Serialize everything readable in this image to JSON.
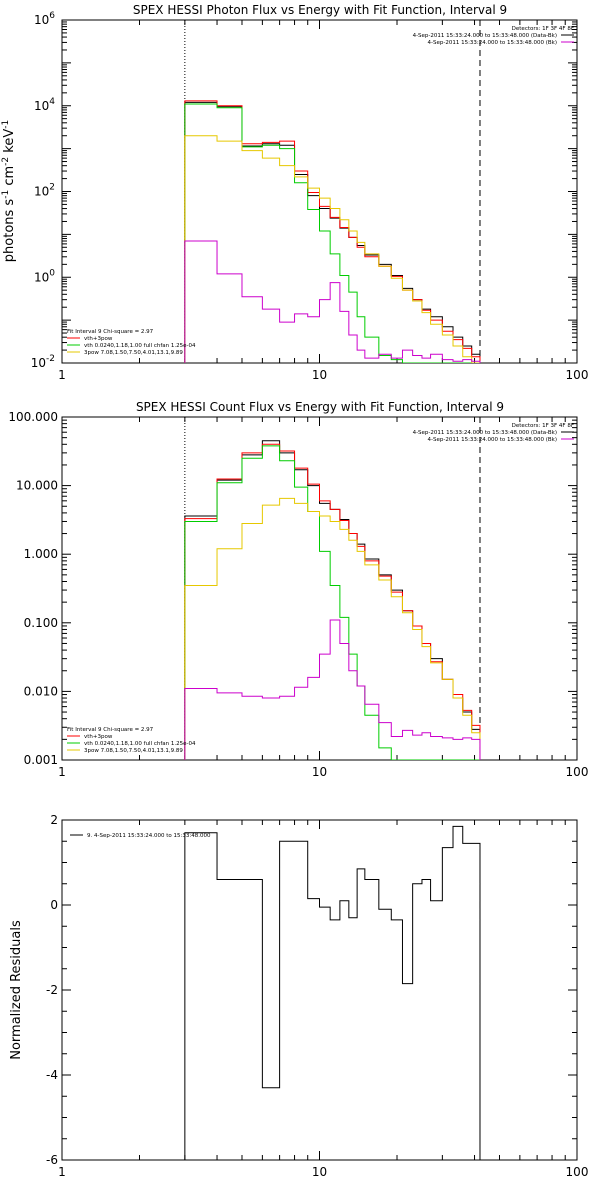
{
  "chart_data": [
    {
      "type": "line",
      "title": "SPEX HESSI Photon Flux vs Energy with Fit Function, Interval 9",
      "ylabel_parts": [
        "photons s",
        "-1",
        " cm",
        "-2",
        " keV",
        "-1"
      ],
      "xlabel": "",
      "xscale": "log",
      "yscale": "log",
      "xlim": [
        1,
        100
      ],
      "ylim": [
        0.01,
        1000000
      ],
      "xticks": [
        1,
        10,
        100
      ],
      "xticklabels": [
        "1",
        "10",
        "100"
      ],
      "yticks": [
        0.01,
        1,
        100,
        10000,
        1000000
      ],
      "yticklabels": [
        {
          "base": "10",
          "exp": "-2"
        },
        {
          "base": "10",
          "exp": "0"
        },
        {
          "base": "10",
          "exp": "2"
        },
        {
          "base": "10",
          "exp": "4"
        },
        {
          "base": "10",
          "exp": "6"
        }
      ],
      "vlines": [
        {
          "x": 3,
          "style": "dotted"
        },
        {
          "x": 42,
          "style": "dashed"
        }
      ],
      "legend_top": {
        "placement": "top-right",
        "header": "Detectors: 1F 3F 4F 8F",
        "entries": [
          {
            "label": "4-Sep-2011 15:33:24.000 to 15:33:48.000 (Data-Bk)",
            "color": "#000000"
          },
          {
            "label": "4-Sep-2011 15:33:24.000 to 15:33:48.000 (Bk)",
            "color": "#cc00cc"
          }
        ]
      },
      "legend_bottom": {
        "placement": "bottom-left",
        "header": "Fit Interval 9   Chi-square = 2.97",
        "entries": [
          {
            "label": "vth+3pow",
            "color": "#ff0000"
          },
          {
            "label": "vth 0.0240,1.18,1.00  full chfan 1.25e-04",
            "color": "#00cc00"
          },
          {
            "label": "3pow 7.08,1.50,7.50,4.01,13.1,9.89",
            "color": "#e6c800"
          }
        ]
      },
      "edges": [
        3,
        4,
        5,
        6,
        7,
        8,
        9,
        10,
        11,
        12,
        13,
        14,
        15,
        17,
        19,
        21,
        23,
        25,
        27,
        30,
        33,
        36,
        39,
        42
      ],
      "series": [
        {
          "name": "Data-Bk",
          "color": "#000000",
          "values": [
            12000,
            9500,
            1150,
            1300,
            1200,
            250,
            80,
            40,
            24,
            14,
            8.5,
            5.5,
            3.3,
            2.0,
            1.1,
            0.55,
            0.3,
            0.18,
            0.12,
            0.07,
            0.04,
            0.025,
            0.016
          ]
        },
        {
          "name": "vth+3pow",
          "color": "#ff0000",
          "values": [
            13000,
            10000,
            1300,
            1400,
            1500,
            300,
            95,
            45,
            25,
            14.5,
            8.5,
            5.0,
            3.0,
            1.8,
            1.05,
            0.5,
            0.3,
            0.17,
            0.1,
            0.055,
            0.035,
            0.022,
            0.014
          ]
        },
        {
          "name": "vth",
          "color": "#00cc00",
          "values": [
            11000,
            9000,
            1100,
            1200,
            1000,
            160,
            38,
            12,
            3.5,
            1.1,
            0.45,
            0.12,
            0.04,
            0.015,
            0.012,
            0.01,
            0.01,
            0.01,
            0.01,
            0.01,
            0.01,
            0.01,
            0.01
          ]
        },
        {
          "name": "3pow",
          "color": "#e6c800",
          "values": [
            2000,
            1500,
            900,
            600,
            400,
            220,
            120,
            70,
            40,
            22,
            12,
            6.5,
            3.5,
            1.8,
            0.95,
            0.5,
            0.28,
            0.15,
            0.08,
            0.045,
            0.025,
            0.014,
            0.01
          ]
        },
        {
          "name": "Bk",
          "color": "#cc00cc",
          "values": [
            7,
            1.2,
            0.35,
            0.18,
            0.09,
            0.14,
            0.12,
            0.3,
            0.75,
            0.16,
            0.045,
            0.02,
            0.013,
            0.016,
            0.013,
            0.02,
            0.015,
            0.013,
            0.016,
            0.012,
            0.011,
            0.012,
            0.011
          ]
        }
      ]
    },
    {
      "type": "line",
      "title": "SPEX HESSI Count Flux vs Energy with Fit Function, Interval 9",
      "ylabel": "",
      "xlabel": "",
      "xscale": "log",
      "yscale": "log",
      "xlim": [
        1,
        100
      ],
      "ylim": [
        0.001,
        100
      ],
      "xticks": [
        1,
        10,
        100
      ],
      "xticklabels": [
        "1",
        "10",
        "100"
      ],
      "yticks": [
        0.001,
        0.01,
        0.1,
        1,
        10,
        100
      ],
      "yticklabels": [
        "0.001",
        "0.010",
        "0.100",
        "1.000",
        "10.000",
        "100.000"
      ],
      "vlines": [
        {
          "x": 3,
          "style": "dotted"
        },
        {
          "x": 42,
          "style": "dashed"
        }
      ],
      "legend_top": {
        "placement": "top-right",
        "header": "Detectors: 1F 3F 4F 8F",
        "entries": [
          {
            "label": "4-Sep-2011 15:33:24.000 to 15:33:48.000 (Data-Bk)",
            "color": "#000000"
          },
          {
            "label": "4-Sep-2011 15:33:24.000 to 15:33:48.000 (Bk)",
            "color": "#cc00cc"
          }
        ]
      },
      "legend_bottom": {
        "placement": "bottom-left",
        "header": "Fit Interval 9   Chi-square = 2.97",
        "entries": [
          {
            "label": "vth+3pow",
            "color": "#ff0000"
          },
          {
            "label": "vth 0.0240,1.18,1.00  full chfan 1.25e-04",
            "color": "#00cc00"
          },
          {
            "label": "3pow 7.08,1.50,7.50,4.01,13.1,9.89",
            "color": "#e6c800"
          }
        ]
      },
      "edges": [
        3,
        4,
        5,
        6,
        7,
        8,
        9,
        10,
        11,
        12,
        13,
        14,
        15,
        17,
        19,
        21,
        23,
        25,
        27,
        30,
        33,
        36,
        39,
        42
      ],
      "series": [
        {
          "name": "Data-Bk",
          "color": "#000000",
          "values": [
            3.6,
            12,
            28,
            45,
            30,
            17,
            10,
            5.5,
            4.5,
            3.2,
            2.0,
            1.4,
            0.85,
            0.5,
            0.3,
            0.15,
            0.09,
            0.05,
            0.03,
            0.015,
            0.008,
            0.005,
            0.0028
          ]
        },
        {
          "name": "vth+3pow",
          "color": "#ff0000",
          "values": [
            3.3,
            12.5,
            30,
            40,
            32,
            18,
            10.5,
            6.0,
            4.5,
            3.1,
            2.0,
            1.3,
            0.8,
            0.48,
            0.28,
            0.15,
            0.09,
            0.05,
            0.027,
            0.015,
            0.009,
            0.0053,
            0.0032
          ]
        },
        {
          "name": "vth",
          "color": "#00cc00",
          "values": [
            3.0,
            11,
            25,
            38,
            23,
            9.5,
            4.2,
            1.1,
            0.35,
            0.12,
            0.035,
            0.012,
            0.0045,
            0.0015,
            0.001,
            0.001,
            0.001,
            0.001,
            0.001,
            0.001,
            0.001,
            0.001,
            0.001
          ]
        },
        {
          "name": "3pow",
          "color": "#e6c800",
          "values": [
            0.35,
            1.2,
            2.8,
            5.2,
            6.5,
            5.5,
            4.2,
            3.6,
            3.0,
            2.3,
            1.6,
            1.1,
            0.7,
            0.42,
            0.24,
            0.14,
            0.08,
            0.045,
            0.026,
            0.015,
            0.008,
            0.0045,
            0.0025
          ]
        },
        {
          "name": "Bk",
          "color": "#cc00cc",
          "values": [
            0.011,
            0.0095,
            0.0085,
            0.008,
            0.0085,
            0.0115,
            0.016,
            0.035,
            0.11,
            0.05,
            0.02,
            0.012,
            0.0065,
            0.0035,
            0.0022,
            0.0027,
            0.0023,
            0.0025,
            0.0022,
            0.0021,
            0.002,
            0.0021,
            0.002
          ]
        }
      ]
    },
    {
      "type": "line",
      "title": "",
      "ylabel": "Normalized Residuals",
      "xlabel": "",
      "xscale": "log",
      "yscale": "linear",
      "xlim": [
        1,
        100
      ],
      "ylim": [
        -6,
        2
      ],
      "xticks": [
        1,
        10,
        100
      ],
      "xticklabels": [
        "1",
        "10",
        "100"
      ],
      "yticks": [
        -6,
        -4,
        -2,
        0,
        2
      ],
      "yticklabels": [
        "-6",
        "-4",
        "-2",
        "0",
        "2"
      ],
      "legend": {
        "placement": "top-left",
        "label": "9.  4-Sep-2011 15:33:24.000 to 15:33:48.000"
      },
      "edges": [
        3,
        4,
        5,
        6,
        7,
        8,
        9,
        10,
        11,
        12,
        13,
        14,
        15,
        17,
        19,
        21,
        23,
        25,
        27,
        30,
        33,
        36,
        39,
        42
      ],
      "series": [
        {
          "name": "",
          "color": "#000000",
          "values": [
            1.7,
            0.6,
            0.6,
            -4.3,
            1.5,
            1.5,
            0.15,
            -0.05,
            -0.35,
            0.1,
            -0.3,
            0.85,
            0.6,
            -0.1,
            -0.35,
            -1.85,
            0.5,
            0.6,
            0.1,
            1.35,
            1.85,
            1.45,
            1.45
          ]
        }
      ]
    }
  ]
}
